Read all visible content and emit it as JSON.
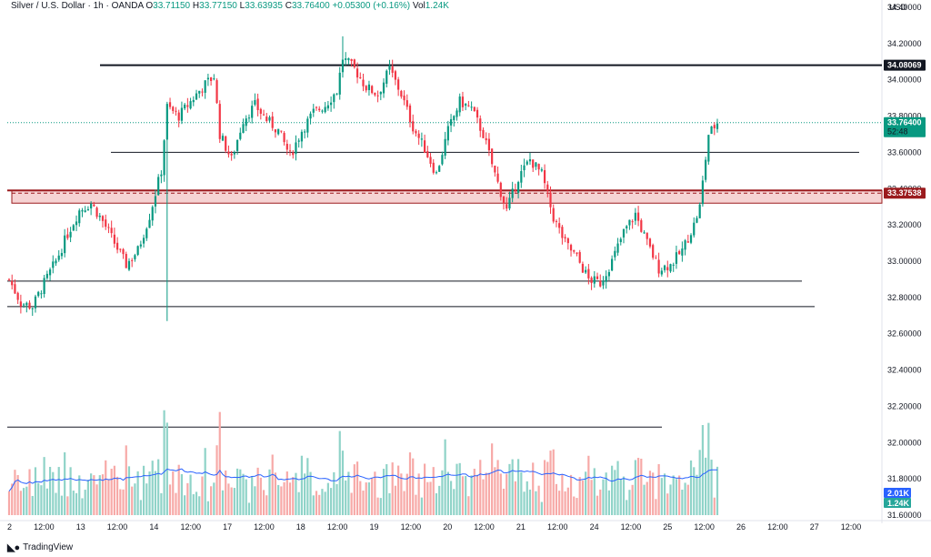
{
  "header": {
    "symbol": "Silver / U.S. Dollar · 1h · OANDA",
    "open_key": "O",
    "open": "33.71150",
    "high_key": "H",
    "high": "33.77150",
    "low_key": "L",
    "low": "33.63935",
    "close_key": "C",
    "close": "33.76400",
    "change": "+0.05300 (+0.16%)",
    "vol_key": "Vol",
    "vol": "1.24K"
  },
  "currency": "USD",
  "branding": "TradingView",
  "colors": {
    "up": "#089981",
    "down": "#f23645",
    "zone": "#9b1b1e",
    "zone_fill": "#f6d3d3"
  },
  "chart_data": {
    "type": "candlestick",
    "y_range": [
      31.6,
      34.4
    ],
    "y_ticks": [
      "34.40000",
      "34.20000",
      "34.00000",
      "33.80000",
      "33.60000",
      "33.40000",
      "33.20000",
      "33.00000",
      "32.80000",
      "32.60000",
      "32.40000",
      "32.20000",
      "32.00000",
      "31.80000",
      "31.60000"
    ],
    "x_ticks": [
      "2",
      "12:00",
      "13",
      "12:00",
      "14",
      "12:00",
      "17",
      "12:00",
      "18",
      "12:00",
      "19",
      "12:00",
      "20",
      "12:00",
      "21",
      "12:00",
      "24",
      "12:00",
      "25",
      "12:00",
      "26",
      "12:00",
      "27",
      "12:00"
    ],
    "anchors": [
      [
        0,
        32.9
      ],
      [
        4,
        32.77
      ],
      [
        8,
        32.75
      ],
      [
        12,
        32.88
      ],
      [
        16,
        33.0
      ],
      [
        20,
        33.15
      ],
      [
        24,
        33.28
      ],
      [
        28,
        33.32
      ],
      [
        32,
        33.22
      ],
      [
        36,
        33.1
      ],
      [
        40,
        32.98
      ],
      [
        44,
        33.06
      ],
      [
        48,
        33.25
      ],
      [
        52,
        33.5
      ],
      [
        54,
        33.85
      ],
      [
        58,
        33.8
      ],
      [
        62,
        33.88
      ],
      [
        66,
        33.96
      ],
      [
        70,
        34.02
      ],
      [
        72,
        33.7
      ],
      [
        76,
        33.56
      ],
      [
        80,
        33.78
      ],
      [
        84,
        33.86
      ],
      [
        88,
        33.78
      ],
      [
        92,
        33.72
      ],
      [
        96,
        33.58
      ],
      [
        100,
        33.72
      ],
      [
        104,
        33.82
      ],
      [
        108,
        33.86
      ],
      [
        112,
        33.94
      ],
      [
        114,
        34.12
      ],
      [
        118,
        34.06
      ],
      [
        122,
        33.96
      ],
      [
        126,
        33.92
      ],
      [
        130,
        34.06
      ],
      [
        134,
        33.92
      ],
      [
        138,
        33.74
      ],
      [
        142,
        33.62
      ],
      [
        146,
        33.48
      ],
      [
        150,
        33.72
      ],
      [
        154,
        33.88
      ],
      [
        158,
        33.84
      ],
      [
        162,
        33.7
      ],
      [
        166,
        33.48
      ],
      [
        170,
        33.28
      ],
      [
        174,
        33.46
      ],
      [
        178,
        33.56
      ],
      [
        182,
        33.48
      ],
      [
        186,
        33.24
      ],
      [
        190,
        33.1
      ],
      [
        194,
        33.02
      ],
      [
        198,
        32.9
      ],
      [
        202,
        32.88
      ],
      [
        206,
        33.0
      ],
      [
        210,
        33.16
      ],
      [
        214,
        33.26
      ],
      [
        218,
        33.1
      ],
      [
        222,
        32.96
      ],
      [
        226,
        32.98
      ],
      [
        230,
        33.06
      ],
      [
        234,
        33.2
      ],
      [
        236,
        33.3
      ],
      [
        239,
        33.7
      ],
      [
        242,
        33.764
      ]
    ],
    "lows": [
      [
        54,
        32.67
      ]
    ],
    "highs": [
      [
        114,
        34.24
      ]
    ],
    "volume_range": [
      0,
      4000
    ],
    "volume_ma_color": "#2962ff",
    "horizontal_levels": [
      {
        "value": 34.08069,
        "label": "34.08069",
        "style": "thick"
      },
      {
        "value": 33.6,
        "style": "thin"
      },
      {
        "value": 32.89,
        "style": "thin"
      },
      {
        "value": 32.75,
        "style": "thin"
      }
    ],
    "zone": {
      "top": 33.39,
      "bottom": 33.32,
      "mid": 33.37538
    },
    "volume_line": {
      "value": 2650
    },
    "price_tags": [
      {
        "value": 34.08069,
        "text": "34.08069",
        "bg": "#131722",
        "fg": "#ffffff"
      },
      {
        "value": 33.764,
        "text": "33.76400",
        "sub": "52:48",
        "bg": "#089981",
        "fg": "#ffffff"
      },
      {
        "value": 33.37538,
        "text": "33.37538",
        "bg": "#9b1b1e",
        "fg": "#ffffff"
      }
    ],
    "volume_tags": [
      {
        "text": "2.01K",
        "bg": "#2962ff"
      },
      {
        "text": "1.24K",
        "bg": "#26a69a"
      }
    ]
  }
}
